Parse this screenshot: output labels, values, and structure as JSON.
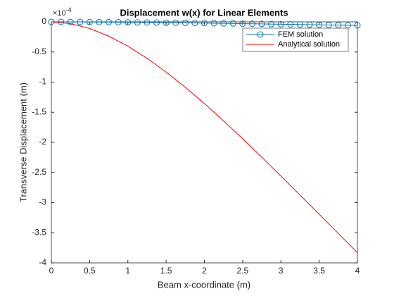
{
  "chart_data": {
    "type": "line",
    "title": "Displacement w(x) for Linear Elements",
    "xlabel": "Beam x-coordinate (m)",
    "ylabel": "Transverse Displacement (m)",
    "y_multiplier": {
      "base": "×10",
      "exponent": "-4"
    },
    "xlim": [
      0,
      4
    ],
    "xticks": [
      0,
      0.5,
      1,
      1.5,
      2,
      2.5,
      3,
      3.5,
      4
    ],
    "ylim": [
      -4,
      0
    ],
    "yticks": [
      -4,
      -3.5,
      -3,
      -2.5,
      -2,
      -1.5,
      -1,
      -0.5,
      0
    ],
    "legend": "northeast",
    "series": [
      {
        "name": "FEM solution",
        "color": "#0072BD",
        "marker": "circle",
        "x": [
          0,
          0.125,
          0.25,
          0.375,
          0.5,
          0.625,
          0.75,
          0.875,
          1,
          1.125,
          1.25,
          1.375,
          1.5,
          1.625,
          1.75,
          1.875,
          2,
          2.125,
          2.25,
          2.375,
          2.5,
          2.625,
          2.75,
          2.875,
          3,
          3.125,
          3.25,
          3.375,
          3.5,
          3.625,
          3.75,
          3.875,
          4
        ],
        "values": [
          0,
          0,
          -0.001,
          -0.002,
          -0.003,
          -0.004,
          -0.005,
          -0.006,
          -0.008,
          -0.009,
          -0.01,
          -0.012,
          -0.014,
          -0.016,
          -0.017,
          -0.019,
          -0.021,
          -0.023,
          -0.025,
          -0.027,
          -0.03,
          -0.032,
          -0.034,
          -0.037,
          -0.039,
          -0.041,
          -0.044,
          -0.047,
          -0.049,
          -0.052,
          -0.054,
          -0.057,
          -0.06
        ]
      },
      {
        "name": "Analytical solution",
        "color": "#FF0000",
        "marker": "none",
        "x": [
          0,
          0.25,
          0.5,
          0.75,
          1,
          1.25,
          1.5,
          1.75,
          2,
          2.25,
          2.5,
          2.75,
          3,
          3.25,
          3.5,
          3.75,
          4
        ],
        "values": [
          0,
          -0.029,
          -0.11,
          -0.237,
          -0.404,
          -0.604,
          -0.833,
          -1.085,
          -1.356,
          -1.643,
          -1.94,
          -2.246,
          -2.558,
          -2.874,
          -3.192,
          -3.511,
          -3.83
        ]
      }
    ]
  }
}
